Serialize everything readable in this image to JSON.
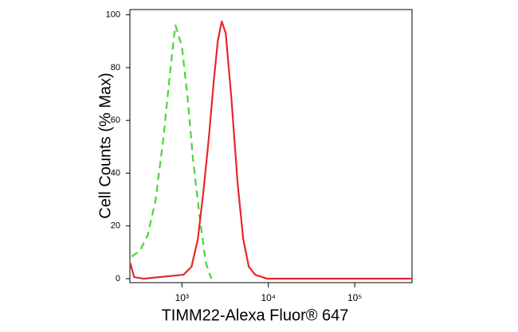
{
  "chart_data": {
    "type": "line",
    "x_label": "TIMM22-Alexa Fluor® 647",
    "y_label": "Cell Counts (% Max)",
    "xscale": "log",
    "xlim": [
      250,
      460000
    ],
    "ylim": [
      -1.5,
      102
    ],
    "xticks": [
      {
        "value": 1000,
        "label": "10³"
      },
      {
        "value": 10000,
        "label": "10⁴"
      },
      {
        "value": 100000,
        "label": "10⁵"
      }
    ],
    "yticks": [
      0,
      20,
      40,
      60,
      80,
      100
    ],
    "series": [
      {
        "color": "#4cd43a",
        "dash": true,
        "x": [
          262,
          325,
          402,
          497,
          614,
          713,
          809,
          844,
          1000,
          1160,
          1346,
          1596,
          1890,
          2192
        ],
        "values": [
          8.4,
          10.5,
          16.5,
          30,
          54,
          75,
          91.6,
          96,
          88,
          69,
          45,
          24,
          6,
          0
        ]
      },
      {
        "color": "#e8262a",
        "dash": false,
        "x": [
          252,
          280,
          361,
          1043,
          1290,
          1529,
          1773,
          2057,
          2337,
          2600,
          2891,
          3215,
          3725,
          4415,
          5126,
          5946,
          7047,
          9680,
          460000
        ],
        "values": [
          6,
          0.6,
          0,
          1.5,
          4.5,
          15,
          33,
          54,
          75,
          90,
          97.5,
          93,
          69,
          36,
          15,
          4.5,
          1.5,
          0,
          0
        ]
      }
    ]
  }
}
